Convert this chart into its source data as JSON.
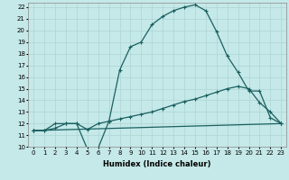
{
  "xlabel": "Humidex (Indice chaleur)",
  "bg_color": "#c5e8e8",
  "grid_color": "#add4d4",
  "line_color": "#1a6060",
  "xlim": [
    -0.5,
    23.5
  ],
  "ylim": [
    10,
    22.4
  ],
  "yticks": [
    10,
    11,
    12,
    13,
    14,
    15,
    16,
    17,
    18,
    19,
    20,
    21,
    22
  ],
  "xticks": [
    0,
    1,
    2,
    3,
    4,
    5,
    6,
    7,
    8,
    9,
    10,
    11,
    12,
    13,
    14,
    15,
    16,
    17,
    18,
    19,
    20,
    21,
    22,
    23
  ],
  "line1_x": [
    0,
    1,
    2,
    3,
    4,
    5,
    6,
    7,
    8,
    9,
    10,
    11,
    12,
    13,
    14,
    15,
    16,
    17,
    18,
    19,
    20,
    21,
    22,
    23
  ],
  "line1_y": [
    11.4,
    11.4,
    12.0,
    12.0,
    12.0,
    9.8,
    9.9,
    12.2,
    16.6,
    18.6,
    19.0,
    20.5,
    21.2,
    21.7,
    22.0,
    22.2,
    21.7,
    19.9,
    17.8,
    16.4,
    14.8,
    14.8,
    12.5,
    12.0
  ],
  "line2_x": [
    0,
    1,
    2,
    3,
    4,
    5,
    6,
    7,
    8,
    9,
    10,
    11,
    12,
    13,
    14,
    15,
    16,
    17,
    18,
    19,
    20,
    21,
    22,
    23
  ],
  "line2_y": [
    11.4,
    11.4,
    11.6,
    12.0,
    12.0,
    11.5,
    12.0,
    12.2,
    12.4,
    12.6,
    12.8,
    13.0,
    13.3,
    13.6,
    13.9,
    14.1,
    14.4,
    14.7,
    15.0,
    15.2,
    15.0,
    13.8,
    13.0,
    12.0
  ],
  "line3_x": [
    0,
    23
  ],
  "line3_y": [
    11.4,
    12.0
  ]
}
